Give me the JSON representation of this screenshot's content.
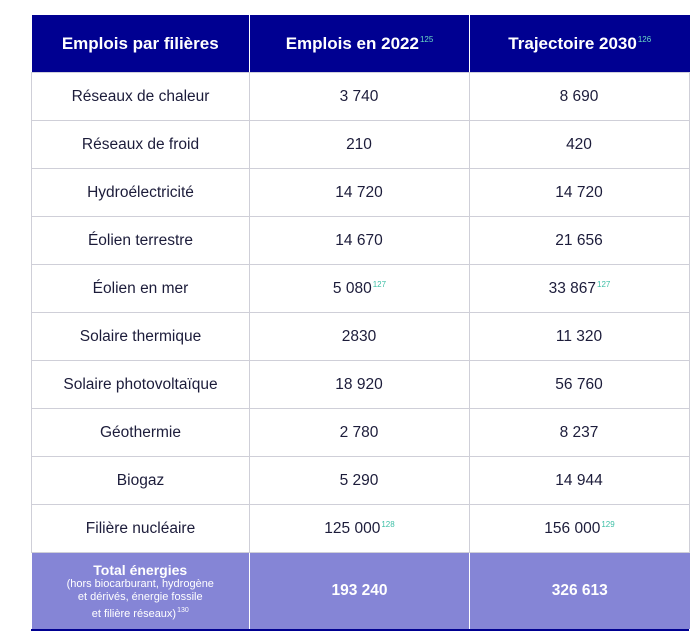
{
  "header": {
    "col1": "Emplois par filières",
    "col2": "Emplois en 2022",
    "col2_ref": "125",
    "col3": "Trajectoire 2030",
    "col3_ref": "126"
  },
  "rows": [
    {
      "sector": "Réseaux de chaleur",
      "jobs_2022": "3 740",
      "jobs_2022_ref": "",
      "trajectory_2030": "8 690",
      "trajectory_2030_ref": ""
    },
    {
      "sector": "Réseaux de froid",
      "jobs_2022": "210",
      "jobs_2022_ref": "",
      "trajectory_2030": "420",
      "trajectory_2030_ref": ""
    },
    {
      "sector": "Hydroélectricité",
      "jobs_2022": "14 720",
      "jobs_2022_ref": "",
      "trajectory_2030": "14 720",
      "trajectory_2030_ref": ""
    },
    {
      "sector": "Éolien terrestre",
      "jobs_2022": "14 670",
      "jobs_2022_ref": "",
      "trajectory_2030": "21 656",
      "trajectory_2030_ref": ""
    },
    {
      "sector": "Éolien en mer",
      "jobs_2022": "5 080",
      "jobs_2022_ref": "127",
      "trajectory_2030": "33 867",
      "trajectory_2030_ref": "127"
    },
    {
      "sector": "Solaire thermique",
      "jobs_2022": "2830",
      "jobs_2022_ref": "",
      "trajectory_2030": "11 320",
      "trajectory_2030_ref": ""
    },
    {
      "sector": "Solaire photovoltaïque",
      "jobs_2022": "18 920",
      "jobs_2022_ref": "",
      "trajectory_2030": "56 760",
      "trajectory_2030_ref": ""
    },
    {
      "sector": "Géothermie",
      "jobs_2022": "2 780",
      "jobs_2022_ref": "",
      "trajectory_2030": "8 237",
      "trajectory_2030_ref": ""
    },
    {
      "sector": "Biogaz",
      "jobs_2022": "5 290",
      "jobs_2022_ref": "",
      "trajectory_2030": "14 944",
      "trajectory_2030_ref": ""
    },
    {
      "sector": "Filière nucléaire",
      "jobs_2022": "125 000",
      "jobs_2022_ref": "128",
      "trajectory_2030": "156 000",
      "trajectory_2030_ref": "129"
    }
  ],
  "total": {
    "label": "Total énergies",
    "note_line1": "(hors biocarburant, hydrogène",
    "note_line2": "et dérivés, énergie fossile",
    "note_line3": "et filière réseaux)",
    "note_ref": "130",
    "jobs_2022": "193 240",
    "trajectory_2030": "326 613"
  },
  "colors": {
    "header_bg": "#000091",
    "total_bg": "#8585d6",
    "footnote_ref": "#3ebfa6"
  }
}
